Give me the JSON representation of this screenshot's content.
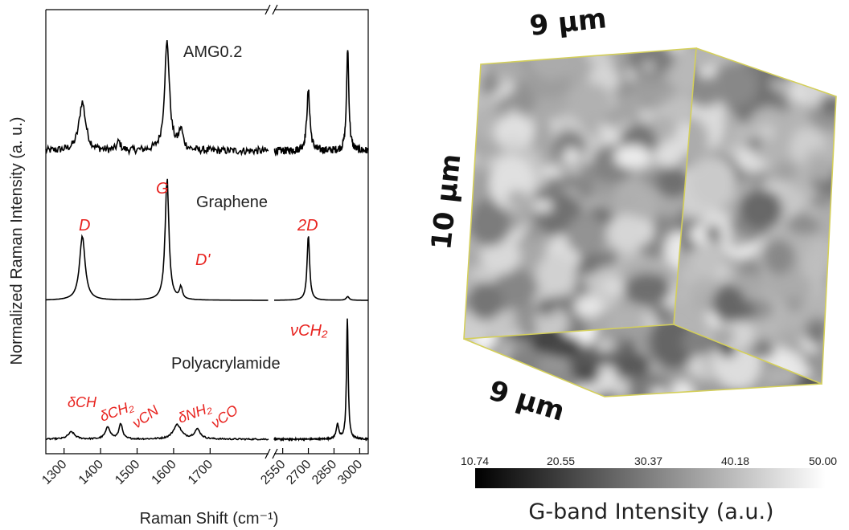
{
  "chart_data": [
    {
      "type": "line",
      "xlabel": "Raman Shift (cm⁻¹)",
      "ylabel": "Normalized Raman Intensity (a. u.)",
      "x_tick_labels": [
        "1300",
        "1400",
        "1500",
        "1600",
        "1700",
        "2550",
        "2700",
        "2850",
        "3000"
      ],
      "x_segments": [
        {
          "xlim": [
            1250,
            1860
          ],
          "ticks": [
            1300,
            1400,
            1500,
            1600,
            1700
          ]
        },
        {
          "xlim": [
            2500,
            3050
          ],
          "ticks": [
            2550,
            2700,
            2850,
            3000
          ]
        }
      ],
      "axis_break": "//",
      "series": [
        {
          "name": "AMG0.2",
          "peaks": [
            {
              "x": 1350,
              "height": 0.45,
              "width": 22
            },
            {
              "x": 1450,
              "height": 0.08,
              "width": 12
            },
            {
              "x": 1582,
              "height": 1.0,
              "width": 16
            },
            {
              "x": 1620,
              "height": 0.18,
              "width": 14
            },
            {
              "x": 2700,
              "height": 0.55,
              "width": 22
            },
            {
              "x": 2930,
              "height": 0.95,
              "width": 16
            }
          ],
          "noise": 0.035
        },
        {
          "name": "Graphene",
          "peaks": [
            {
              "x": 1350,
              "height": 0.52,
              "width": 18
            },
            {
              "x": 1582,
              "height": 1.0,
              "width": 12
            },
            {
              "x": 1620,
              "height": 0.1,
              "width": 9
            },
            {
              "x": 2700,
              "height": 0.52,
              "width": 18
            },
            {
              "x": 2930,
              "height": 0.03,
              "width": 20
            }
          ],
          "noise": 0.0
        },
        {
          "name": "Polyacrylamide",
          "peaks": [
            {
              "x": 1320,
              "height": 0.06,
              "width": 22
            },
            {
              "x": 1420,
              "height": 0.1,
              "width": 16
            },
            {
              "x": 1455,
              "height": 0.13,
              "width": 11
            },
            {
              "x": 1610,
              "height": 0.12,
              "width": 26
            },
            {
              "x": 1665,
              "height": 0.08,
              "width": 20
            },
            {
              "x": 2870,
              "height": 0.12,
              "width": 18
            },
            {
              "x": 2928,
              "height": 1.0,
              "width": 12
            }
          ],
          "noise": 0.006
        }
      ],
      "annotations": {
        "graphene": [
          "D",
          "G",
          "D'",
          "2D"
        ],
        "polyacrylamide": [
          "δCH",
          "δCH₂",
          "νCN",
          "δNH₂",
          "νCO",
          "νCH₂"
        ]
      }
    },
    {
      "type": "heatmap",
      "description": "3D cube volume rendering of G-band intensity",
      "dimensions": {
        "top": "9 µm",
        "height": "10 µm",
        "depth": "9 µm"
      },
      "colorbar": {
        "ticks": [
          "10.74",
          "20.55",
          "30.37",
          "40.18",
          "50.00"
        ],
        "range": [
          10.74,
          50.0
        ],
        "colormap": "grayscale",
        "label": "G-band Intensity (a.u.)"
      }
    }
  ],
  "colors": {
    "spectra": "#000000",
    "annotation": "#e8231f",
    "cube_edge": "#d4cf5a"
  }
}
